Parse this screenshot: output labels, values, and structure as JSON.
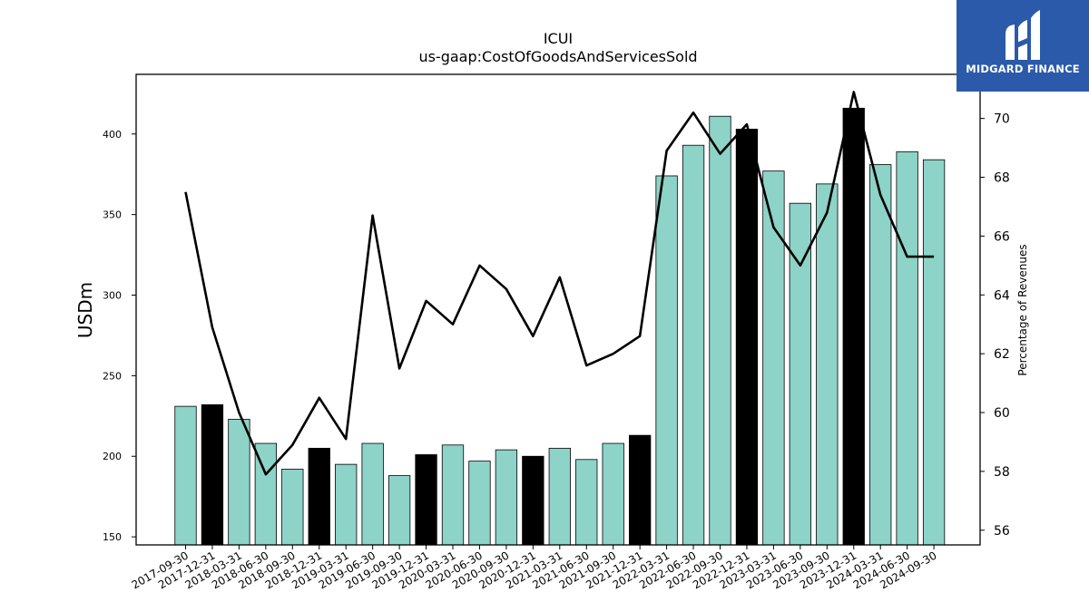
{
  "chart_data": {
    "type": "bar",
    "title": "ICUI",
    "subtitle": "us-gaap:CostOfGoodsAndServicesSold",
    "ylabel": "USDm",
    "y2label": "Percentage of Revenues",
    "ylim": [
      145,
      437
    ],
    "y2lim": [
      55.5,
      71.5
    ],
    "yticks": [
      150,
      200,
      250,
      300,
      350,
      400
    ],
    "y2ticks": [
      56,
      58,
      60,
      62,
      64,
      66,
      68,
      70
    ],
    "categories": [
      "2017-09-30",
      "2017-12-31",
      "2018-03-31",
      "2018-06-30",
      "2018-09-30",
      "2018-12-31",
      "2019-03-31",
      "2019-06-30",
      "2019-09-30",
      "2019-12-31",
      "2020-03-31",
      "2020-06-30",
      "2020-09-30",
      "2020-12-31",
      "2021-03-31",
      "2021-06-30",
      "2021-09-30",
      "2021-12-31",
      "2022-03-31",
      "2022-06-30",
      "2022-09-30",
      "2022-12-31",
      "2023-03-31",
      "2023-06-30",
      "2023-09-30",
      "2023-12-31",
      "2024-03-31",
      "2024-06-30",
      "2024-09-30"
    ],
    "series": [
      {
        "type": "bar",
        "values": [
          231,
          232,
          223,
          208,
          192,
          205,
          195,
          208,
          188,
          201,
          207,
          197,
          204,
          200,
          205,
          198,
          208,
          213,
          374,
          393,
          411,
          403,
          377,
          357,
          369,
          416,
          381,
          389,
          384
        ],
        "highlight": [
          1,
          5,
          9,
          13,
          17,
          21,
          25
        ]
      },
      {
        "type": "line",
        "axis": "right",
        "values": [
          67.5,
          62.9,
          60.0,
          57.9,
          58.9,
          60.5,
          59.1,
          66.7,
          61.5,
          63.8,
          63.0,
          65.0,
          64.2,
          62.6,
          64.6,
          61.6,
          62.0,
          62.6,
          68.9,
          70.2,
          68.8,
          69.8,
          66.3,
          65.0,
          66.8,
          70.9,
          67.4,
          65.3,
          65.3
        ]
      }
    ],
    "colors": {
      "bar": "#8dd3c7",
      "bar_highlight": "#000000",
      "line": "#000000",
      "edge": "#000000"
    },
    "grid": false
  },
  "logo": {
    "text": "MIDGARD FINANCE",
    "color": "#2b5aab"
  }
}
